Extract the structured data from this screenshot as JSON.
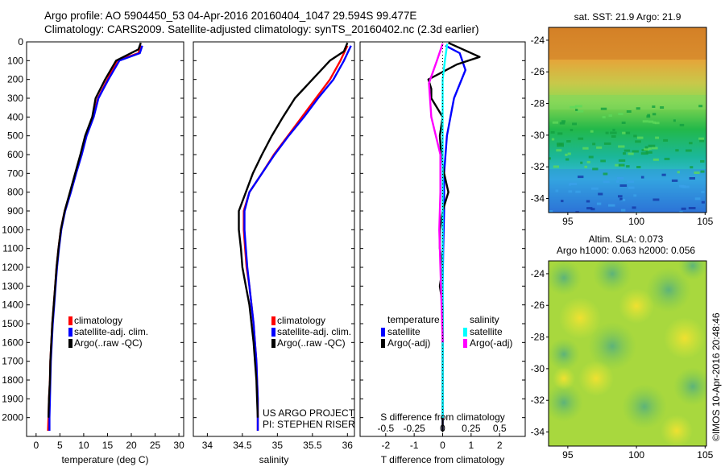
{
  "header": {
    "line1": "Argo profile: AO 5904450_53 04-Apr-2016 20160404_1047 29.594S 99.477E",
    "line2": "Climatology: CARS2009. Satellite-adjusted climatology: synTS_20160402.nc (2.3d earlier)"
  },
  "credits": {
    "project": "US ARGO PROJECT",
    "pi": "PI: STEPHEN RISER",
    "stamp": "©IMOS 10-Apr-2016 20:48:46"
  },
  "colors": {
    "climatology": "#ff0000",
    "satellite": "#0000ff",
    "argo": "#000000",
    "s_satellite": "#00ffff",
    "s_argo": "#ff00ff"
  },
  "chart_data": [
    {
      "id": "temperature",
      "type": "line",
      "xlabel": "temperature (deg C)",
      "ylabel": "",
      "xlim": [
        -2,
        31
      ],
      "ylim": [
        2100,
        0
      ],
      "xticks": [
        0,
        5,
        10,
        15,
        20,
        25,
        30
      ],
      "yticks": [
        0,
        100,
        200,
        300,
        400,
        500,
        600,
        700,
        800,
        900,
        1000,
        1100,
        1200,
        1300,
        1400,
        1500,
        1600,
        1700,
        1800,
        1900,
        2000
      ],
      "legend": [
        "climatology",
        "satellite-adj. clim.",
        "Argo(..raw -QC)"
      ],
      "series": [
        {
          "name": "climatology",
          "color": "#ff0000",
          "points": [
            [
              22,
              20
            ],
            [
              21.5,
              60
            ],
            [
              17,
              100
            ],
            [
              15,
              200
            ],
            [
              13,
              300
            ],
            [
              12,
              400
            ],
            [
              10.5,
              500
            ],
            [
              9.5,
              600
            ],
            [
              8.3,
              700
            ],
            [
              7.2,
              800
            ],
            [
              6,
              900
            ],
            [
              5.2,
              1000
            ],
            [
              4.7,
              1100
            ],
            [
              4.3,
              1200
            ],
            [
              4,
              1300
            ],
            [
              3.7,
              1400
            ],
            [
              3.4,
              1500
            ],
            [
              3.2,
              1600
            ],
            [
              3,
              1700
            ],
            [
              2.9,
              1800
            ],
            [
              2.7,
              1900
            ],
            [
              2.6,
              2000
            ],
            [
              2.5,
              2070
            ]
          ]
        },
        {
          "name": "satellite-adj. clim.",
          "color": "#0000ff",
          "points": [
            [
              22.3,
              20
            ],
            [
              21.8,
              60
            ],
            [
              17.5,
              100
            ],
            [
              15.2,
              200
            ],
            [
              13.1,
              300
            ],
            [
              12.1,
              400
            ],
            [
              10.6,
              500
            ],
            [
              9.6,
              600
            ],
            [
              8.4,
              700
            ],
            [
              7.3,
              800
            ],
            [
              6.1,
              900
            ],
            [
              5.3,
              1000
            ],
            [
              4.8,
              1100
            ],
            [
              4.4,
              1200
            ],
            [
              4.1,
              1300
            ],
            [
              3.8,
              1400
            ],
            [
              3.5,
              1500
            ],
            [
              3.3,
              1600
            ],
            [
              3.1,
              1700
            ],
            [
              3,
              1800
            ],
            [
              2.9,
              1900
            ],
            [
              2.8,
              2000
            ],
            [
              2.8,
              2070
            ]
          ]
        },
        {
          "name": "Argo(..raw -QC)",
          "color": "#000000",
          "points": [
            [
              22,
              5
            ],
            [
              21.5,
              40
            ],
            [
              16.8,
              100
            ],
            [
              14.5,
              200
            ],
            [
              12.5,
              300
            ],
            [
              11.8,
              400
            ],
            [
              10.3,
              500
            ],
            [
              9.3,
              600
            ],
            [
              8.2,
              700
            ],
            [
              7.1,
              800
            ],
            [
              6,
              900
            ],
            [
              5.2,
              1000
            ],
            [
              4.7,
              1100
            ],
            [
              4.3,
              1200
            ],
            [
              4,
              1300
            ],
            [
              3.7,
              1400
            ],
            [
              3.4,
              1500
            ],
            [
              3.2,
              1600
            ],
            [
              3,
              1700
            ],
            [
              2.9,
              1800
            ],
            [
              2.7,
              1900
            ],
            [
              2.6,
              2000
            ]
          ]
        }
      ]
    },
    {
      "id": "salinity",
      "type": "line",
      "xlabel": "salinity",
      "ylabel": "",
      "xlim": [
        33.8,
        36.1
      ],
      "ylim": [
        2100,
        0
      ],
      "xticks": [
        34,
        34.5,
        35,
        35.5,
        36
      ],
      "legend": [
        "climatology",
        "satellite-adj. clim.",
        "Argo(..raw -QC)"
      ],
      "series": [
        {
          "name": "climatology",
          "color": "#ff0000",
          "points": [
            [
              36,
              20
            ],
            [
              35.9,
              100
            ],
            [
              35.75,
              200
            ],
            [
              35.55,
              300
            ],
            [
              35.35,
              400
            ],
            [
              35.15,
              500
            ],
            [
              34.95,
              600
            ],
            [
              34.78,
              700
            ],
            [
              34.6,
              800
            ],
            [
              34.52,
              900
            ],
            [
              34.52,
              1000
            ],
            [
              34.54,
              1100
            ],
            [
              34.56,
              1200
            ],
            [
              34.6,
              1300
            ],
            [
              34.63,
              1400
            ],
            [
              34.66,
              1500
            ],
            [
              34.68,
              1600
            ],
            [
              34.7,
              1700
            ],
            [
              34.71,
              1800
            ],
            [
              34.72,
              1900
            ],
            [
              34.72,
              2000
            ],
            [
              34.72,
              2070
            ]
          ]
        },
        {
          "name": "satellite-adj. clim.",
          "color": "#0000ff",
          "points": [
            [
              36.05,
              20
            ],
            [
              35.95,
              100
            ],
            [
              35.8,
              200
            ],
            [
              35.58,
              300
            ],
            [
              35.38,
              400
            ],
            [
              35.16,
              500
            ],
            [
              34.96,
              600
            ],
            [
              34.78,
              700
            ],
            [
              34.6,
              800
            ],
            [
              34.53,
              900
            ],
            [
              34.53,
              1000
            ],
            [
              34.55,
              1100
            ],
            [
              34.57,
              1200
            ],
            [
              34.6,
              1300
            ],
            [
              34.63,
              1400
            ],
            [
              34.66,
              1500
            ],
            [
              34.68,
              1600
            ],
            [
              34.7,
              1700
            ],
            [
              34.71,
              1800
            ],
            [
              34.72,
              1900
            ],
            [
              34.72,
              2000
            ],
            [
              34.72,
              2070
            ]
          ]
        },
        {
          "name": "Argo(..raw -QC)",
          "color": "#000000",
          "points": [
            [
              36,
              5
            ],
            [
              35.95,
              50
            ],
            [
              35.75,
              100
            ],
            [
              35.5,
              200
            ],
            [
              35.25,
              300
            ],
            [
              35.08,
              400
            ],
            [
              34.92,
              500
            ],
            [
              34.78,
              600
            ],
            [
              34.65,
              700
            ],
            [
              34.55,
              800
            ],
            [
              34.45,
              900
            ],
            [
              34.45,
              1000
            ],
            [
              34.48,
              1100
            ],
            [
              34.5,
              1200
            ],
            [
              34.55,
              1300
            ],
            [
              34.6,
              1400
            ],
            [
              34.63,
              1500
            ],
            [
              34.66,
              1600
            ],
            [
              34.68,
              1700
            ],
            [
              34.7,
              1800
            ],
            [
              34.71,
              1900
            ],
            [
              34.72,
              2000
            ]
          ]
        }
      ]
    },
    {
      "id": "differences",
      "type": "line",
      "xlabel": "T difference from climatology",
      "xlabel_top": "S difference from climatology",
      "xlim": [
        -2.9,
        2.9
      ],
      "ylim": [
        2100,
        0
      ],
      "xticks": [
        -2,
        -1,
        0,
        1,
        2
      ],
      "xticks_top": [
        "-0.5",
        "-0.25",
        "0",
        "0.25",
        "0.5"
      ],
      "legend_temperature_title": "temperature",
      "legend_salinity_title": "salinity",
      "legend_temperature": [
        "satellite",
        "Argo(-adj)"
      ],
      "legend_salinity": [
        "satellite",
        "Argo(-adj)"
      ],
      "series": [
        {
          "name": "T satellite",
          "color": "#0000ff",
          "points": [
            [
              0.1,
              20
            ],
            [
              0.6,
              60
            ],
            [
              0.8,
              150
            ],
            [
              0.4,
              300
            ],
            [
              0.15,
              500
            ],
            [
              0.05,
              700
            ],
            [
              0.05,
              900
            ],
            [
              0.02,
              1100
            ],
            [
              0,
              1300
            ],
            [
              0,
              1500
            ],
            [
              0,
              1700
            ],
            [
              0,
              1900
            ],
            [
              0,
              2070
            ]
          ]
        },
        {
          "name": "T Argo(-adj)",
          "color": "#000000",
          "points": [
            [
              0.2,
              5
            ],
            [
              1.3,
              80
            ],
            [
              0.5,
              120
            ],
            [
              -0.5,
              200
            ],
            [
              -0.4,
              250
            ],
            [
              -0.4,
              300
            ],
            [
              0,
              400
            ],
            [
              -0.1,
              500
            ],
            [
              -0.05,
              600
            ],
            [
              0.05,
              700
            ],
            [
              0.2,
              800
            ],
            [
              0,
              900
            ],
            [
              -0.1,
              1000
            ],
            [
              -0.1,
              1100
            ],
            [
              0,
              1200
            ],
            [
              -0.1,
              1300
            ],
            [
              0,
              1400
            ],
            [
              0,
              1500
            ],
            [
              0,
              1700
            ],
            [
              0,
              1900
            ],
            [
              0,
              2070
            ]
          ]
        },
        {
          "name": "S satellite",
          "color": "#00ffff",
          "points": [
            [
              0.04,
              10
            ],
            [
              0.02,
              100
            ],
            [
              0.0,
              200
            ],
            [
              0.0,
              400
            ],
            [
              0.0,
              800
            ],
            [
              0.0,
              1200
            ],
            [
              0.0,
              1600
            ],
            [
              0.0,
              2000
            ]
          ]
        },
        {
          "name": "S Argo(-adj)",
          "color": "#ff00ff",
          "points": [
            [
              0.0,
              10
            ],
            [
              -0.05,
              100
            ],
            [
              -0.12,
              220
            ],
            [
              -0.1,
              400
            ],
            [
              -0.02,
              600
            ],
            [
              -0.02,
              800
            ],
            [
              -0.03,
              1000
            ],
            [
              -0.02,
              1200
            ],
            [
              -0.01,
              1400
            ],
            [
              0.0,
              1600
            ]
          ]
        }
      ]
    }
  ],
  "maps": [
    {
      "id": "sst",
      "title": "sat. SST: 21.9  Argo: 21.9",
      "lat_ticks": [
        "-24",
        "-26",
        "-28",
        "-30",
        "-32",
        "-34"
      ],
      "lon_ticks": [
        "95",
        "100",
        "105"
      ]
    },
    {
      "id": "sla",
      "title": "Altim. SLA: 0.073",
      "subtitle": "Argo h1000: 0.063 h2000: 0.056",
      "lat_ticks": [
        "-24",
        "-26",
        "-28",
        "-30",
        "-32",
        "-34"
      ],
      "lon_ticks": [
        "95",
        "100",
        "105"
      ]
    }
  ]
}
